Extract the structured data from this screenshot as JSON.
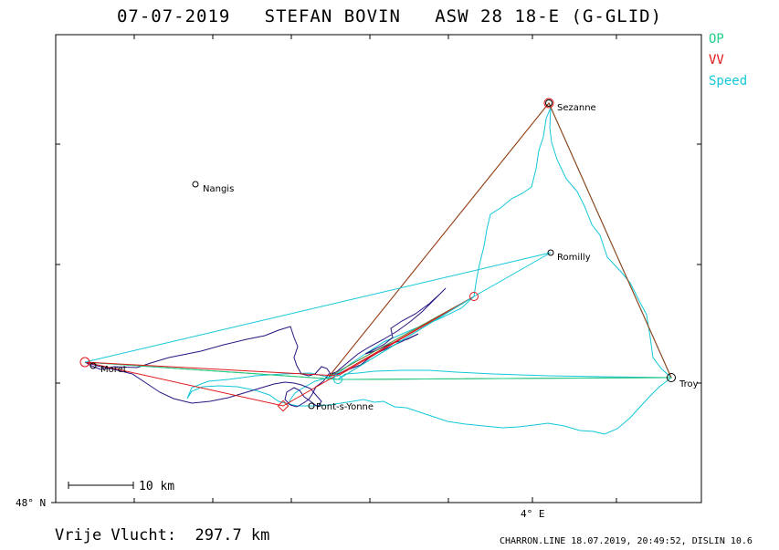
{
  "title": "07-07-2019   STEFAN BOVIN   ASW 28 18-E (G-GLID)",
  "legend": [
    {
      "label": "OP",
      "color": "#1fcf8a"
    },
    {
      "label": "VV",
      "color": "#e0181a"
    },
    {
      "label": "Speed",
      "color": "#12c8d8"
    }
  ],
  "axis": {
    "lat_label": "48° N",
    "lon_label": "4° E"
  },
  "scale_label": "10 km",
  "footer": {
    "distance": "Vrije Vlucht:  297.7 km",
    "credit": "CHARRON.LINE 18.07.2019, 20:49:52, DISLIN 10.6"
  },
  "places": [
    {
      "name": "Sezanne",
      "show_label": true
    },
    {
      "name": "Nangis",
      "show_label": true
    },
    {
      "name": "Romilly",
      "show_label": true
    },
    {
      "name": "Moret",
      "show_label": true
    },
    {
      "name": "Pont-s-Yonne",
      "show_label": true
    },
    {
      "name": "Troy",
      "show_label": true
    }
  ]
}
